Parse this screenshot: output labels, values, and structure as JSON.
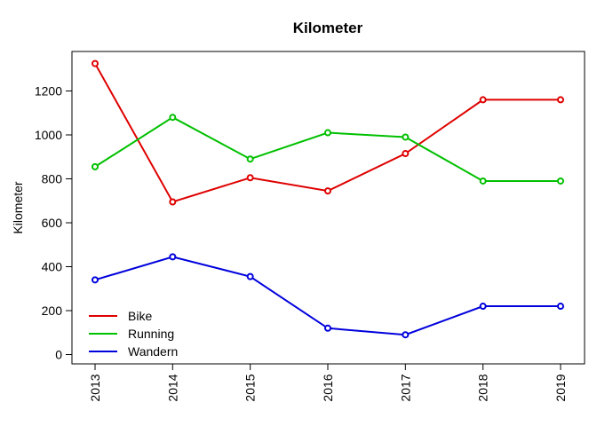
{
  "chart_data": {
    "type": "line",
    "title": "Kilometer",
    "xlabel": "",
    "ylabel": "Kilometer",
    "x": [
      2013,
      2014,
      2015,
      2016,
      2017,
      2018,
      2019
    ],
    "x_tick_labels": [
      "2013",
      "2014",
      "2015",
      "2016",
      "2017",
      "2018",
      "2019"
    ],
    "y_ticks": [
      0,
      200,
      400,
      600,
      800,
      1000,
      1200
    ],
    "y_tick_labels": [
      "0",
      "200",
      "400",
      "600",
      "800",
      "1000",
      "1200"
    ],
    "ylim": [
      -50,
      1330
    ],
    "grid": false,
    "legend_position": "bottom-left",
    "series": [
      {
        "name": "Bike",
        "color": "#DF0000",
        "values": [
          1325,
          695,
          805,
          745,
          915,
          1160,
          1160
        ]
      },
      {
        "name": "Running",
        "color": "#00C000",
        "values": [
          855,
          1080,
          890,
          1010,
          990,
          790,
          790
        ]
      },
      {
        "name": "Wandern",
        "color": "#0000DD",
        "values": [
          340,
          445,
          355,
          120,
          90,
          220,
          220
        ]
      }
    ]
  }
}
